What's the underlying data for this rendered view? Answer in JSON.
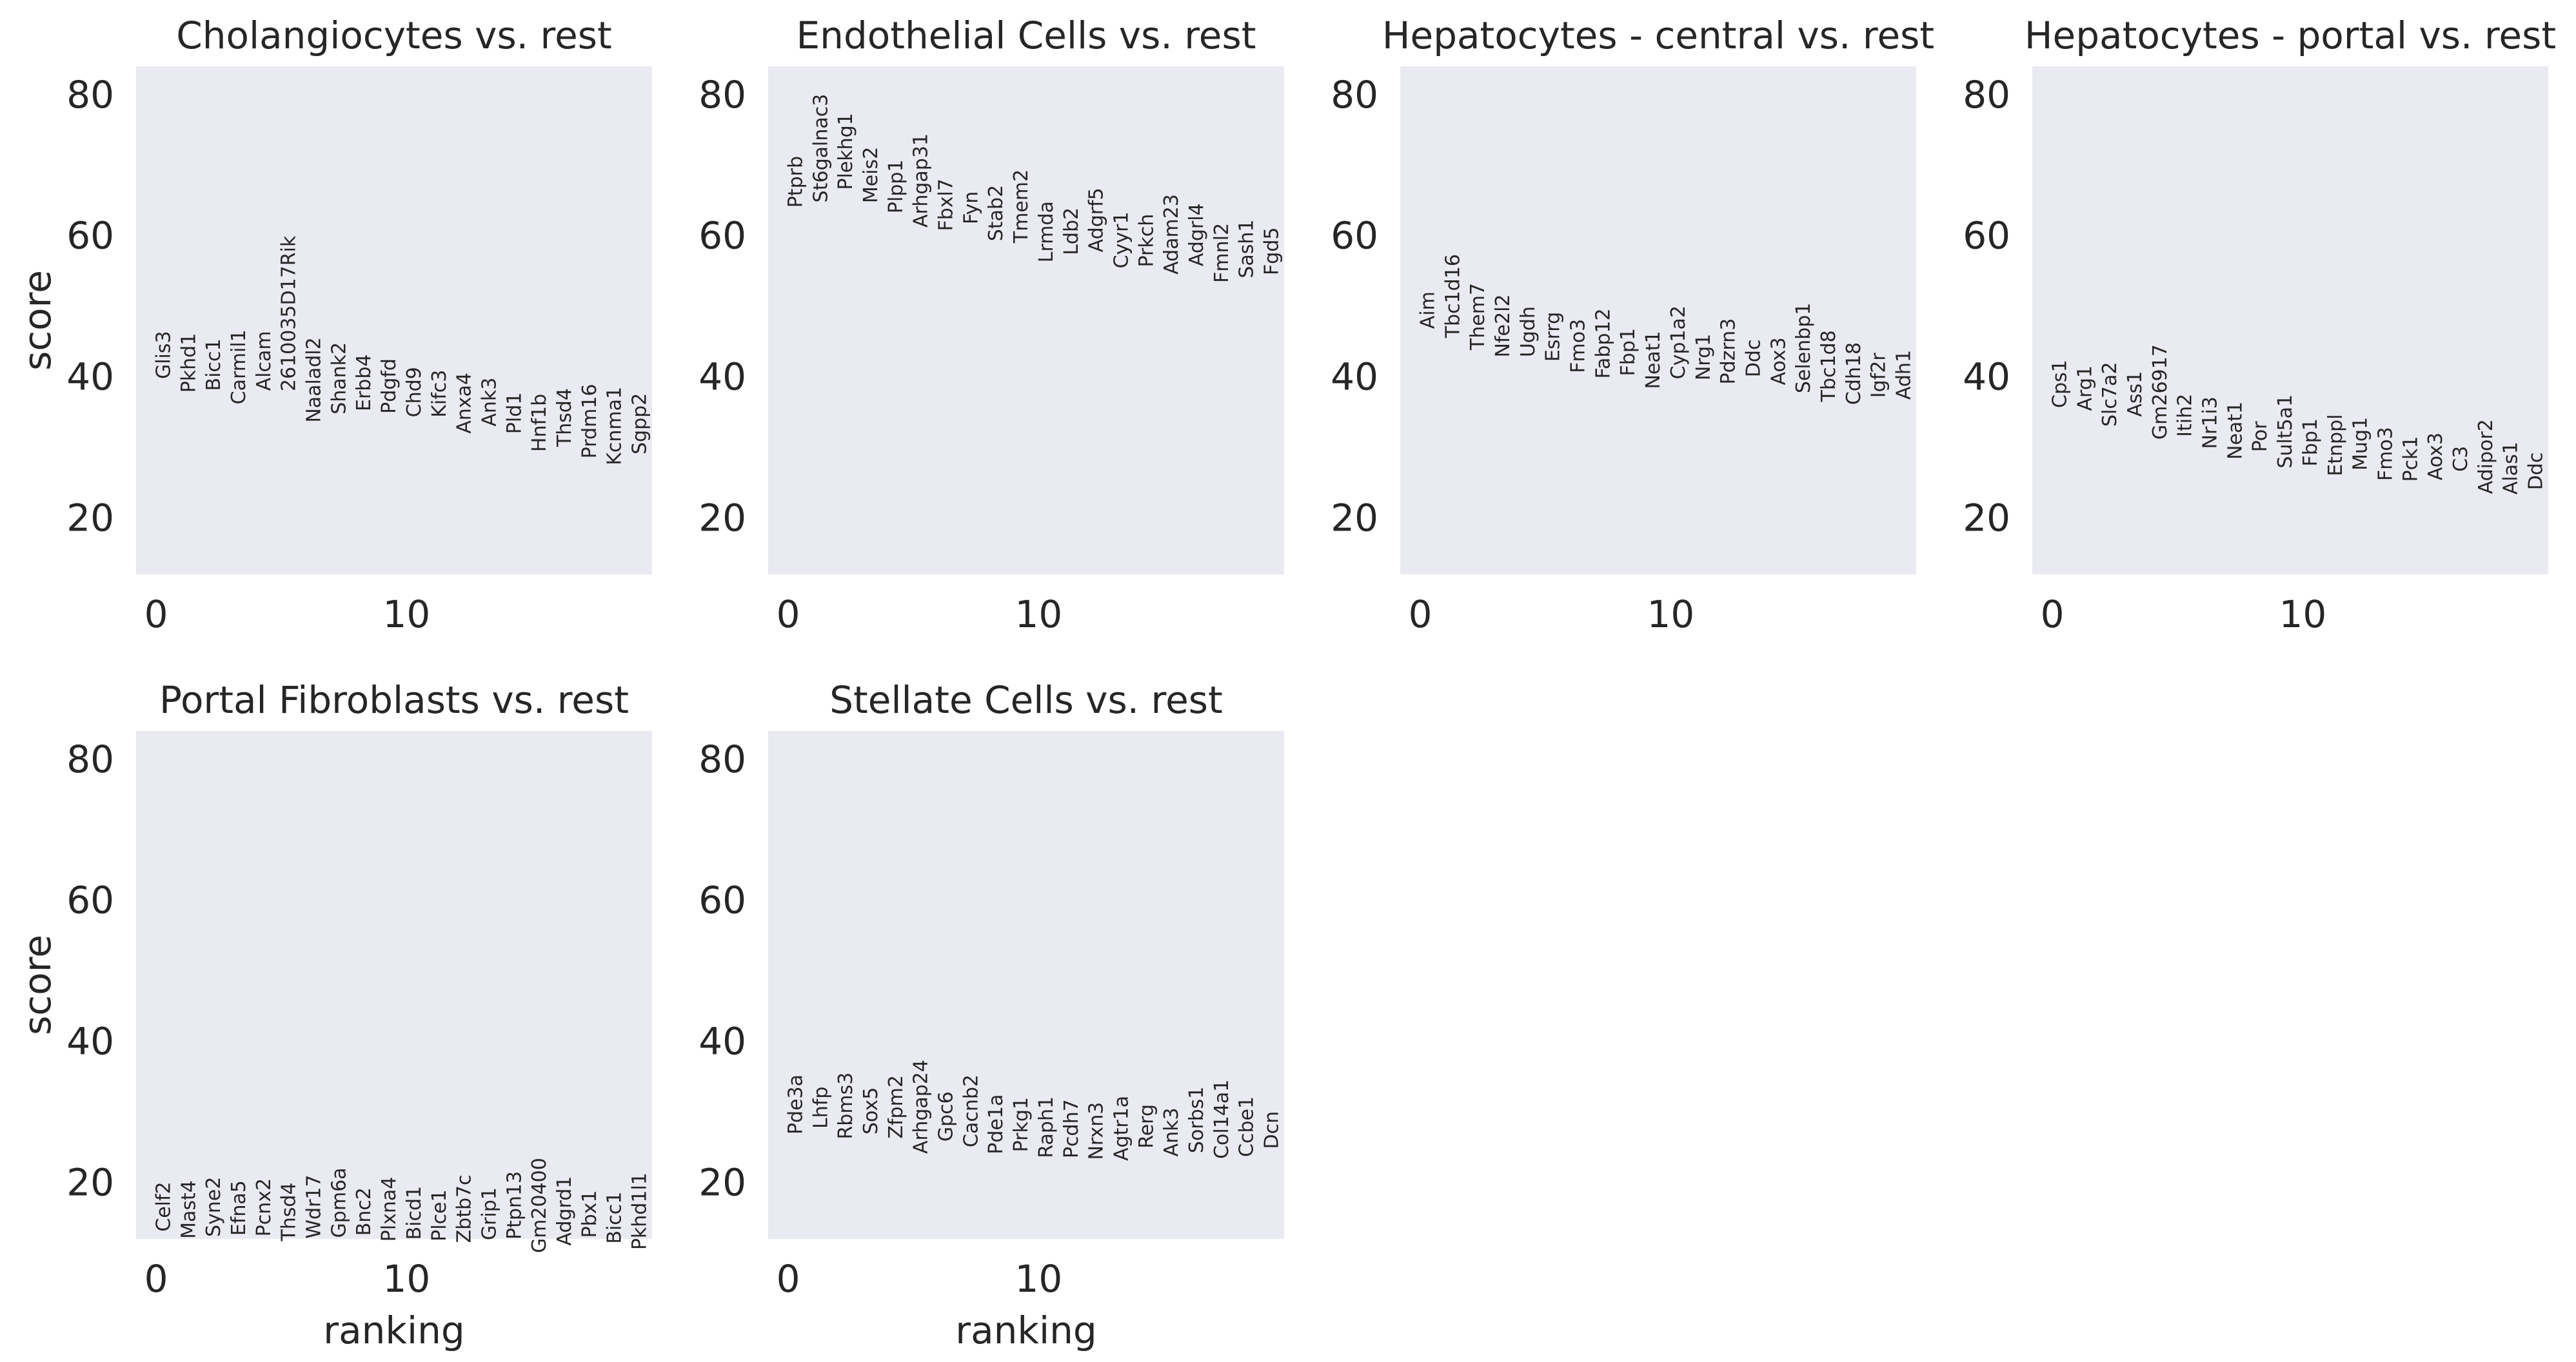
{
  "figure": {
    "panels_per_row": 4,
    "background": "#ffffff",
    "plot_background": "#eaeaf2",
    "text_color": "#262626"
  },
  "chart_data": [
    {
      "type": "scatter",
      "title": "Cholangiocytes vs. rest",
      "xlabel": "",
      "ylabel": "score",
      "xlim": [
        -0.8,
        19.8
      ],
      "ylim": [
        12,
        84
      ],
      "xticks": [
        0,
        10
      ],
      "yticks": [
        20,
        40,
        60,
        80
      ],
      "grid": false,
      "points": [
        {
          "rank": 0,
          "gene": "Glis3",
          "score": 46.5
        },
        {
          "rank": 1,
          "gene": "Pkhd1",
          "score": 46.2
        },
        {
          "rank": 2,
          "gene": "Bicc1",
          "score": 45.4
        },
        {
          "rank": 3,
          "gene": "Carmil1",
          "score": 46.7
        },
        {
          "rank": 4,
          "gene": "Alcam",
          "score": 46.5
        },
        {
          "rank": 5,
          "gene": "2610035D17Rik",
          "score": 60.0
        },
        {
          "rank": 6,
          "gene": "Naaladl2",
          "score": 45.6
        },
        {
          "rank": 7,
          "gene": "Shank2",
          "score": 44.9
        },
        {
          "rank": 8,
          "gene": "Erbb4",
          "score": 43.2
        },
        {
          "rank": 9,
          "gene": "Pdgfd",
          "score": 42.6
        },
        {
          "rank": 10,
          "gene": "Chd9",
          "score": 41.4
        },
        {
          "rank": 11,
          "gene": "Kifc3",
          "score": 41.0
        },
        {
          "rank": 12,
          "gene": "Anxa4",
          "score": 40.6
        },
        {
          "rank": 13,
          "gene": "Ank3",
          "score": 39.9
        },
        {
          "rank": 14,
          "gene": "Pld1",
          "score": 37.8
        },
        {
          "rank": 15,
          "gene": "Hnf1b",
          "score": 37.6
        },
        {
          "rank": 16,
          "gene": "Thsd4",
          "score": 38.4
        },
        {
          "rank": 17,
          "gene": "Prdm16",
          "score": 39.0
        },
        {
          "rank": 18,
          "gene": "Kcnma1",
          "score": 38.6
        },
        {
          "rank": 19,
          "gene": "Sgpp2",
          "score": 37.7
        }
      ]
    },
    {
      "type": "scatter",
      "title": "Endothelial Cells vs. rest",
      "xlabel": "",
      "ylabel": "",
      "xlim": [
        -0.8,
        19.8
      ],
      "ylim": [
        12,
        84
      ],
      "xticks": [
        0,
        10
      ],
      "yticks": [
        20,
        40,
        60,
        80
      ],
      "grid": false,
      "points": [
        {
          "rank": 0,
          "gene": "Ptprb",
          "score": 71.3
        },
        {
          "rank": 1,
          "gene": "St6galnac3",
          "score": 80.1
        },
        {
          "rank": 2,
          "gene": "Plekhg1",
          "score": 77.4
        },
        {
          "rank": 3,
          "gene": "Meis2",
          "score": 72.6
        },
        {
          "rank": 4,
          "gene": "Plpp1",
          "score": 70.8
        },
        {
          "rank": 5,
          "gene": "Arhgap31",
          "score": 74.5
        },
        {
          "rank": 6,
          "gene": "Fbxl7",
          "score": 68.1
        },
        {
          "rank": 7,
          "gene": "Fyn",
          "score": 66.3
        },
        {
          "rank": 8,
          "gene": "Stab2",
          "score": 67.2
        },
        {
          "rank": 9,
          "gene": "Tmem2",
          "score": 69.4
        },
        {
          "rank": 10,
          "gene": "Lrmda",
          "score": 64.9
        },
        {
          "rank": 11,
          "gene": "Ldb2",
          "score": 64.0
        },
        {
          "rank": 12,
          "gene": "Adgrf5",
          "score": 66.8
        },
        {
          "rank": 13,
          "gene": "Cyyr1",
          "score": 63.4
        },
        {
          "rank": 14,
          "gene": "Prkch",
          "score": 63.1
        },
        {
          "rank": 15,
          "gene": "Adam23",
          "score": 65.9
        },
        {
          "rank": 16,
          "gene": "Adgrl4",
          "score": 64.6
        },
        {
          "rank": 17,
          "gene": "Fmnl2",
          "score": 61.8
        },
        {
          "rank": 18,
          "gene": "Sash1",
          "score": 62.3
        },
        {
          "rank": 19,
          "gene": "Fgd5",
          "score": 61.2
        }
      ]
    },
    {
      "type": "scatter",
      "title": "Hepatocytes - central vs. rest",
      "xlabel": "",
      "ylabel": "",
      "xlim": [
        -0.8,
        19.8
      ],
      "ylim": [
        12,
        84
      ],
      "xticks": [
        0,
        10
      ],
      "yticks": [
        20,
        40,
        60,
        80
      ],
      "grid": false,
      "points": [
        {
          "rank": 0,
          "gene": "Aim",
          "score": 52.1
        },
        {
          "rank": 1,
          "gene": "Tbc1d16",
          "score": 57.4
        },
        {
          "rank": 2,
          "gene": "Them7",
          "score": 53.3
        },
        {
          "rank": 3,
          "gene": "Nfe2l2",
          "score": 51.7
        },
        {
          "rank": 4,
          "gene": "Ugdh",
          "score": 50.0
        },
        {
          "rank": 5,
          "gene": "Esrrg",
          "score": 49.2
        },
        {
          "rank": 6,
          "gene": "Fmo3",
          "score": 48.2
        },
        {
          "rank": 7,
          "gene": "Fabp12",
          "score": 49.7
        },
        {
          "rank": 8,
          "gene": "Fbp1",
          "score": 46.9
        },
        {
          "rank": 9,
          "gene": "Neat1",
          "score": 46.5
        },
        {
          "rank": 10,
          "gene": "Cyp1a2",
          "score": 50.1
        },
        {
          "rank": 11,
          "gene": "Nrg1",
          "score": 46.1
        },
        {
          "rank": 12,
          "gene": "Pdzrn3",
          "score": 48.3
        },
        {
          "rank": 13,
          "gene": "Ddc",
          "score": 45.3
        },
        {
          "rank": 14,
          "gene": "Aox3",
          "score": 45.6
        },
        {
          "rank": 15,
          "gene": "Selenbp1",
          "score": 50.5
        },
        {
          "rank": 16,
          "gene": "Tbc1d8",
          "score": 46.6
        },
        {
          "rank": 17,
          "gene": "Cdh18",
          "score": 44.9
        },
        {
          "rank": 18,
          "gene": "Igf2r",
          "score": 43.4
        },
        {
          "rank": 19,
          "gene": "Adh1",
          "score": 43.8
        }
      ]
    },
    {
      "type": "scatter",
      "title": "Hepatocytes - portal vs. rest",
      "xlabel": "",
      "ylabel": "",
      "xlim": [
        -0.8,
        19.8
      ],
      "ylim": [
        12,
        84
      ],
      "xticks": [
        0,
        10
      ],
      "yticks": [
        20,
        40,
        60,
        80
      ],
      "grid": false,
      "points": [
        {
          "rank": 0,
          "gene": "Cps1",
          "score": 42.4
        },
        {
          "rank": 1,
          "gene": "Arg1",
          "score": 41.6
        },
        {
          "rank": 2,
          "gene": "Slc7a2",
          "score": 42.1
        },
        {
          "rank": 3,
          "gene": "Ass1",
          "score": 40.8
        },
        {
          "rank": 4,
          "gene": "Gm26917",
          "score": 44.6
        },
        {
          "rank": 5,
          "gene": "Itih2",
          "score": 37.6
        },
        {
          "rank": 6,
          "gene": "Nr1i3",
          "score": 37.2
        },
        {
          "rank": 7,
          "gene": "Neat1",
          "score": 36.5
        },
        {
          "rank": 8,
          "gene": "Por",
          "score": 33.7
        },
        {
          "rank": 9,
          "gene": "Sult5a1",
          "score": 37.5
        },
        {
          "rank": 10,
          "gene": "Fbp1",
          "score": 34.1
        },
        {
          "rank": 11,
          "gene": "Etnppl",
          "score": 34.7
        },
        {
          "rank": 12,
          "gene": "Mug1",
          "score": 34.3
        },
        {
          "rank": 13,
          "gene": "Fmo3",
          "score": 32.9
        },
        {
          "rank": 14,
          "gene": "Pck1",
          "score": 31.6
        },
        {
          "rank": 15,
          "gene": "Aox3",
          "score": 32.1
        },
        {
          "rank": 16,
          "gene": "C3",
          "score": 30.2
        },
        {
          "rank": 17,
          "gene": "Adipor2",
          "score": 34.0
        },
        {
          "rank": 18,
          "gene": "Alas1",
          "score": 30.8
        },
        {
          "rank": 19,
          "gene": "Ddc",
          "score": 29.3
        }
      ]
    },
    {
      "type": "scatter",
      "title": "Portal Fibroblasts vs. rest",
      "xlabel": "ranking",
      "ylabel": "score",
      "xlim": [
        -0.8,
        19.8
      ],
      "ylim": [
        12,
        84
      ],
      "xticks": [
        0,
        10
      ],
      "yticks": [
        20,
        40,
        60,
        80
      ],
      "grid": false,
      "points": [
        {
          "rank": 0,
          "gene": "Celf2",
          "score": 20.1
        },
        {
          "rank": 1,
          "gene": "Mast4",
          "score": 20.3
        },
        {
          "rank": 2,
          "gene": "Syne2",
          "score": 20.8
        },
        {
          "rank": 3,
          "gene": "Efna5",
          "score": 20.3
        },
        {
          "rank": 4,
          "gene": "Pcnx2",
          "score": 20.6
        },
        {
          "rank": 5,
          "gene": "Thsd4",
          "score": 20.0
        },
        {
          "rank": 6,
          "gene": "Wdr17",
          "score": 21.1
        },
        {
          "rank": 7,
          "gene": "Gpm6a",
          "score": 22.1
        },
        {
          "rank": 8,
          "gene": "Bnc2",
          "score": 19.3
        },
        {
          "rank": 9,
          "gene": "Plxna4",
          "score": 20.8
        },
        {
          "rank": 10,
          "gene": "Bicd1",
          "score": 19.5
        },
        {
          "rank": 11,
          "gene": "Plce1",
          "score": 19.0
        },
        {
          "rank": 12,
          "gene": "Zbtb7c",
          "score": 21.1
        },
        {
          "rank": 13,
          "gene": "Grip1",
          "score": 19.3
        },
        {
          "rank": 14,
          "gene": "Ptpn13",
          "score": 21.6
        },
        {
          "rank": 15,
          "gene": "Gm20400",
          "score": 23.5
        },
        {
          "rank": 16,
          "gene": "Adgrd1",
          "score": 20.9
        },
        {
          "rank": 17,
          "gene": "Pbx1",
          "score": 18.9
        },
        {
          "rank": 18,
          "gene": "Bicc1",
          "score": 18.7
        },
        {
          "rank": 19,
          "gene": "Pkhd1l1",
          "score": 21.4
        }
      ]
    },
    {
      "type": "scatter",
      "title": "Stellate Cells vs. rest",
      "xlabel": "ranking",
      "ylabel": "",
      "xlim": [
        -0.8,
        19.8
      ],
      "ylim": [
        12,
        84
      ],
      "xticks": [
        0,
        10
      ],
      "yticks": [
        20,
        40,
        60,
        80
      ],
      "grid": false,
      "points": [
        {
          "rank": 0,
          "gene": "Pde3a",
          "score": 35.3
        },
        {
          "rank": 1,
          "gene": "Lhfp",
          "score": 33.6
        },
        {
          "rank": 2,
          "gene": "Rbms3",
          "score": 35.6
        },
        {
          "rank": 3,
          "gene": "Sox5",
          "score": 33.5
        },
        {
          "rank": 4,
          "gene": "Zfpm2",
          "score": 35.2
        },
        {
          "rank": 5,
          "gene": "Arhgap24",
          "score": 37.4
        },
        {
          "rank": 6,
          "gene": "Gpc6",
          "score": 32.9
        },
        {
          "rank": 7,
          "gene": "Cacnb2",
          "score": 35.3
        },
        {
          "rank": 8,
          "gene": "Pde1a",
          "score": 32.5
        },
        {
          "rank": 9,
          "gene": "Prkg1",
          "score": 32.1
        },
        {
          "rank": 10,
          "gene": "Raph1",
          "score": 32.2
        },
        {
          "rank": 11,
          "gene": "Pcdh7",
          "score": 31.8
        },
        {
          "rank": 12,
          "gene": "Nrxn3",
          "score": 31.4
        },
        {
          "rank": 13,
          "gene": "Agtr1a",
          "score": 32.3
        },
        {
          "rank": 14,
          "gene": "Rerg",
          "score": 31.1
        },
        {
          "rank": 15,
          "gene": "Ank3",
          "score": 30.6
        },
        {
          "rank": 16,
          "gene": "Sorbs1",
          "score": 33.6
        },
        {
          "rank": 17,
          "gene": "Col14a1",
          "score": 34.6
        },
        {
          "rank": 18,
          "gene": "Ccbe1",
          "score": 32.2
        },
        {
          "rank": 19,
          "gene": "Dcn",
          "score": 30.1
        }
      ]
    }
  ]
}
